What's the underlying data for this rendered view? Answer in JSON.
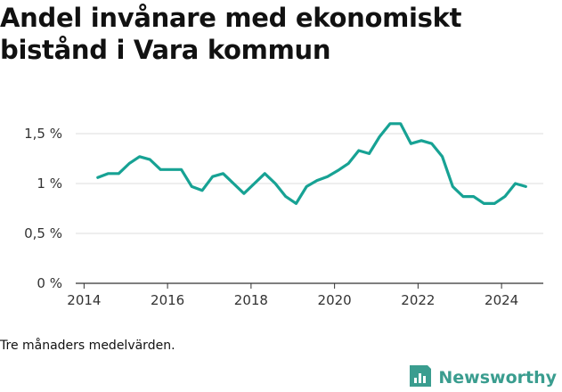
{
  "title": "Andel invånare med ekonomiskt bistånd i Vara kommun",
  "note": "Tre månaders medelvärden.",
  "brand": {
    "name": "Newsworthy",
    "color": "#3a9d8f",
    "logo_icon": "bar-chart-doc-icon"
  },
  "colors": {
    "line": "#17a294",
    "grid": "#dddddd",
    "axis": "#333333"
  },
  "chart_data": {
    "type": "line",
    "title": "Andel invånare med ekonomiskt bistånd i Vara kommun",
    "xlabel": "",
    "ylabel": "",
    "xlim": [
      2013.8,
      2025.0
    ],
    "ylim": [
      0,
      1.6
    ],
    "grid": true,
    "y_ticks": [
      0,
      0.5,
      1,
      1.5
    ],
    "y_tick_labels": [
      "0 %",
      "0,5 %",
      "1 %",
      "1,5 %"
    ],
    "x_ticks": [
      2014,
      2016,
      2018,
      2020,
      2022,
      2024
    ],
    "x_tick_labels": [
      "2014",
      "2016",
      "2018",
      "2020",
      "2022",
      "2024"
    ],
    "series": [
      {
        "x": [
          2014.33,
          2014.58,
          2014.83,
          2015.08,
          2015.33,
          2015.58,
          2015.83,
          2016.08,
          2016.33,
          2016.58,
          2016.83,
          2017.08,
          2017.33,
          2017.58,
          2017.83,
          2018.08,
          2018.33,
          2018.58,
          2018.83,
          2019.08,
          2019.33,
          2019.58,
          2019.83,
          2020.08,
          2020.33,
          2020.58,
          2020.83,
          2021.08,
          2021.33,
          2021.58,
          2021.83,
          2022.08,
          2022.33,
          2022.58,
          2022.83,
          2023.08,
          2023.33,
          2023.58,
          2023.83,
          2024.08,
          2024.33,
          2024.58
        ],
        "values": [
          1.06,
          1.1,
          1.1,
          1.2,
          1.27,
          1.24,
          1.14,
          1.14,
          1.14,
          0.97,
          0.93,
          1.07,
          1.1,
          1.0,
          0.9,
          1.0,
          1.1,
          1.0,
          0.87,
          0.8,
          0.97,
          1.03,
          1.07,
          1.13,
          1.2,
          1.33,
          1.3,
          1.47,
          1.6,
          1.6,
          1.4,
          1.43,
          1.4,
          1.27,
          0.97,
          0.87,
          0.87,
          0.8,
          0.8,
          0.87,
          1.0,
          0.97
        ]
      }
    ]
  }
}
